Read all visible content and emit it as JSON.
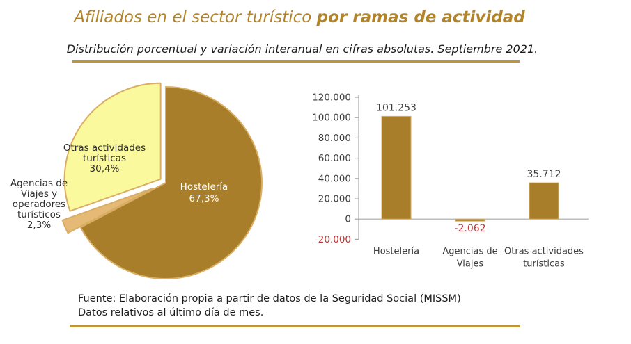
{
  "header": {
    "title_regular": "Afiliados en el sector turístico ",
    "title_bold": "por ramas de actividad",
    "subtitle": "Distribución porcentual y variación interanual en cifras absolutas. Septiembre 2021."
  },
  "footer": {
    "line1": "Fuente: Elaboración propia a partir de datos de la Seguridad Social (MISSM)",
    "line2": "Datos relativos al último día de mes."
  },
  "colors": {
    "title_gold": "#B1832A",
    "rule_gold": "#BE9539",
    "brown": "#A97E2B",
    "yellow": "#FBF99E",
    "tan": "#E5BA76",
    "slice_stroke": "#D9AE62",
    "axis": "#A6A6A6",
    "text_dark": "#3c3c3c",
    "negative_red": "#C33434",
    "pie_label_light": "#FFFFFF"
  },
  "chart_data": [
    {
      "type": "pie",
      "title": "Distribución porcentual",
      "unit": "%",
      "start_angle_deg": 0,
      "clockwise": true,
      "slices": [
        {
          "label": "Hostelería",
          "value": 67.3,
          "display": "Hostelería\n67,3%",
          "color_key": "brown",
          "exploded": false
        },
        {
          "label": "Agencias de Viajes y operadores turísticos",
          "value": 2.3,
          "display": "Agencias de\nViajes y\noperadores\nturísticos\n2,3%",
          "color_key": "tan",
          "exploded": true
        },
        {
          "label": "Otras actividades turísticas",
          "value": 30.4,
          "display": "Otras actividades\nturísticas\n30,4%",
          "color_key": "yellow",
          "exploded": true
        }
      ]
    },
    {
      "type": "bar",
      "title": "Variación interanual en cifras absolutas",
      "categories": [
        "Hostelería",
        "Agencias de\nViajes",
        "Otras actividades\nturísticas"
      ],
      "values": [
        101253,
        -2062,
        35712
      ],
      "value_labels": [
        "101.253",
        "-2.062",
        "35.712"
      ],
      "ylim": [
        -20000,
        120000
      ],
      "ytick_step": 20000,
      "ytick_labels": [
        "120.000",
        "100.000",
        "80.000",
        "60.000",
        "40.000",
        "20.000",
        "0",
        "-20.000"
      ],
      "grid": false,
      "legend": null
    }
  ]
}
